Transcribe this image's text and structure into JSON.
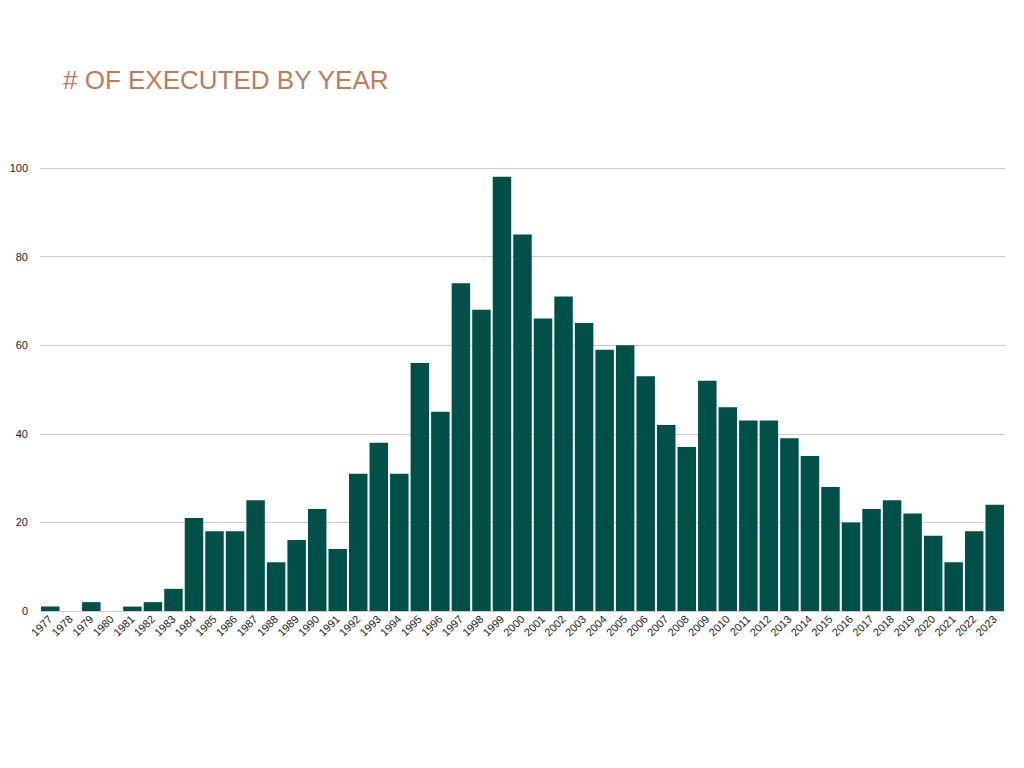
{
  "chart_data": {
    "type": "bar",
    "title": "# OF EXECUTED BY YEAR",
    "categories": [
      "1977",
      "1978",
      "1979",
      "1980",
      "1981",
      "1982",
      "1983",
      "1984",
      "1985",
      "1986",
      "1987",
      "1988",
      "1989",
      "1990",
      "1991",
      "1992",
      "1993",
      "1994",
      "1995",
      "1996",
      "1997",
      "1998",
      "1999",
      "2000",
      "2001",
      "2002",
      "2003",
      "2004",
      "2005",
      "2006",
      "2007",
      "2008",
      "2009",
      "2010",
      "2011",
      "2012",
      "2013",
      "2014",
      "2015",
      "2016",
      "2017",
      "2018",
      "2019",
      "2020",
      "2021",
      "2022",
      "2023"
    ],
    "values": [
      1,
      0,
      2,
      0,
      1,
      2,
      5,
      21,
      18,
      18,
      25,
      11,
      16,
      23,
      14,
      31,
      38,
      31,
      56,
      45,
      74,
      68,
      98,
      85,
      66,
      71,
      65,
      59,
      60,
      53,
      42,
      37,
      52,
      46,
      43,
      43,
      39,
      35,
      28,
      20,
      23,
      25,
      22,
      17,
      11,
      18,
      24
    ],
    "color": "#00504a",
    "ylim": [
      0,
      100
    ],
    "yticks": [
      0,
      20,
      40,
      60,
      80,
      100
    ],
    "grid": true
  }
}
